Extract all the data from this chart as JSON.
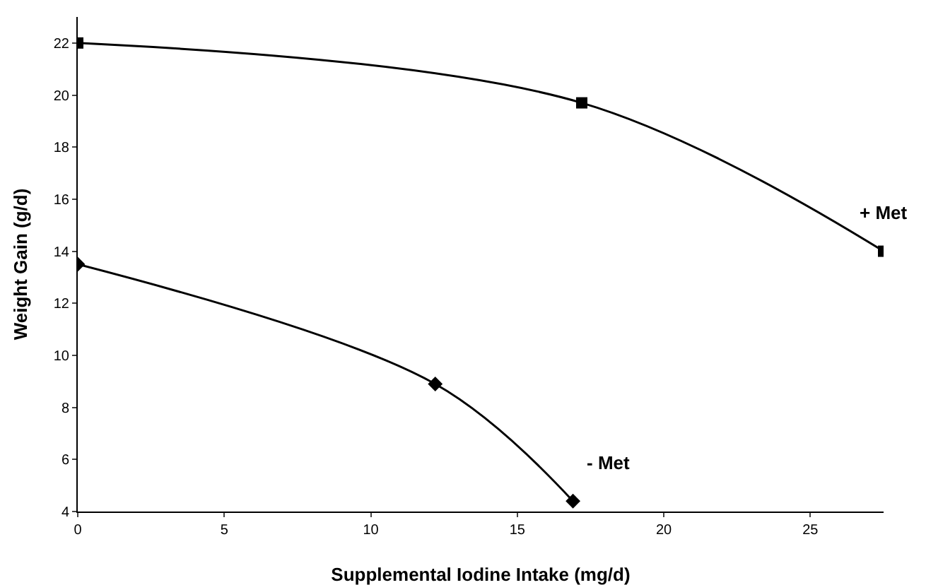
{
  "chart_data": {
    "type": "line",
    "xlabel": "Supplemental Iodine Intake (mg/d)",
    "ylabel": "Weight Gain (g/d)",
    "xlim": [
      0,
      27.5
    ],
    "xticks": [
      0,
      5,
      10,
      15,
      20,
      25
    ],
    "ylim": [
      4,
      23
    ],
    "yticks": [
      4,
      6,
      8,
      10,
      12,
      14,
      16,
      18,
      20,
      22
    ],
    "grid": false,
    "legend": false,
    "line_style": "solid",
    "series": [
      {
        "name": "+ Met",
        "color": "#000000",
        "marker": "square",
        "x": [
          0,
          17.2,
          27.5
        ],
        "values": [
          22,
          19.7,
          14
        ]
      },
      {
        "name": "- Met",
        "color": "#000000",
        "marker": "diamond",
        "x": [
          0,
          12.2,
          16.9
        ],
        "values": [
          13.5,
          8.9,
          4.4
        ]
      }
    ]
  }
}
